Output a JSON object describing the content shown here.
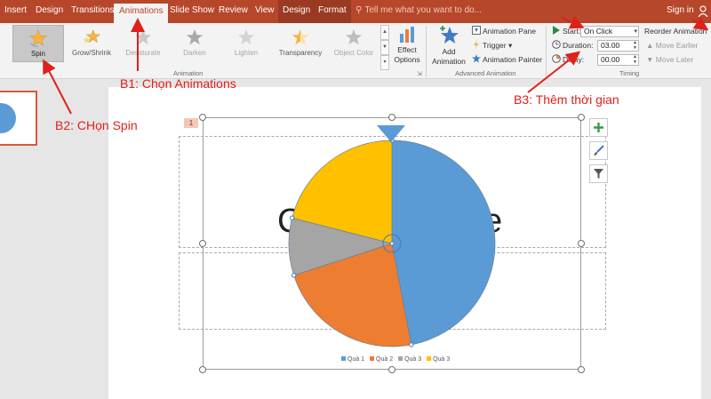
{
  "ribbon_tabs": [
    {
      "label": "Insert"
    },
    {
      "label": "Design"
    },
    {
      "label": "Transitions"
    },
    {
      "label": "Animations",
      "active": true
    },
    {
      "label": "Slide Show"
    },
    {
      "label": "Review"
    },
    {
      "label": "View"
    },
    {
      "label": "Design",
      "contextual": true
    },
    {
      "label": "Format",
      "contextual": true
    }
  ],
  "tell_me": "Tell me what you want to do...",
  "sign_in": "Sign in",
  "animation_gallery": {
    "items": [
      {
        "label": "Spin",
        "icon": "spin-star-icon",
        "selected": true
      },
      {
        "label": "Grow/Shrink",
        "icon": "grow-shrink-star-icon"
      },
      {
        "label": "Desaturate",
        "icon": "desaturate-star-icon"
      },
      {
        "label": "Darken",
        "icon": "darken-star-icon"
      },
      {
        "label": "Lighten",
        "icon": "lighten-star-icon"
      },
      {
        "label": "Transparency",
        "icon": "transparency-star-icon"
      },
      {
        "label": "Object Color",
        "icon": "object-color-star-icon"
      }
    ],
    "group_label": "Animation"
  },
  "effect_options": {
    "label_line1": "Effect",
    "label_line2": "Options"
  },
  "advanced_animation": {
    "add_animation": {
      "line1": "Add",
      "line2": "Animation"
    },
    "animation_pane": "Animation Pane",
    "trigger": "Trigger",
    "animation_painter": "Animation Painter",
    "group_label": "Advanced Animation"
  },
  "timing": {
    "start_label": "Start:",
    "start_value": "On Click",
    "duration_label": "Duration:",
    "duration_value": "03.00",
    "delay_label": "Delay:",
    "delay_value": "00.00",
    "reorder_label": "Reorder Animation",
    "move_earlier": "Move Earlier",
    "move_later": "Move Later",
    "group_label": "Timing"
  },
  "slide": {
    "title_left": "C",
    "title_right": "e",
    "animation_number": "1"
  },
  "chart_data": {
    "type": "pie",
    "categories": [
      "Quà 1",
      "Quà 2",
      "Quà 3",
      "Quà 3"
    ],
    "values": [
      47,
      23,
      9,
      21
    ],
    "colors": [
      "#5b9bd5",
      "#ed7d31",
      "#a5a5a5",
      "#ffc000"
    ]
  },
  "annotations": {
    "b1": "B1: Chọn Animations",
    "b2": "B2: CHọn Spin",
    "b3": "B3: Thêm thời gian"
  },
  "colors": {
    "ribbon_accent": "#b7472a",
    "annotation_red": "#e0201a"
  }
}
